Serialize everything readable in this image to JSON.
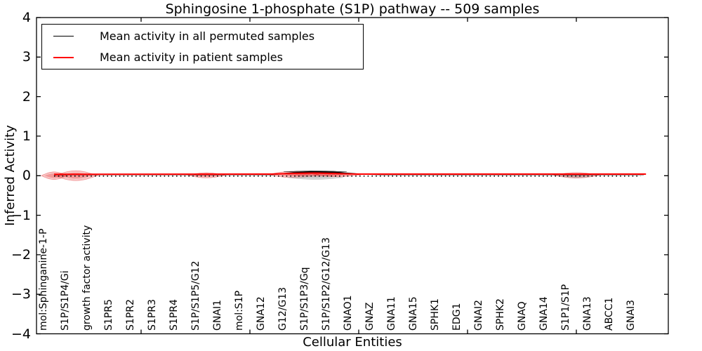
{
  "title": "Sphingosine 1-phosphate (S1P) pathway -- 509 samples",
  "legend": {
    "entries": [
      {
        "label": "Mean activity in all permuted samples",
        "color": "#000000"
      },
      {
        "label": "Mean activity in patient samples",
        "color": "#ff0000"
      }
    ]
  },
  "axes": {
    "xlabel": "Cellular Entities",
    "ylabel": "Inferred Activity"
  },
  "chart_data": {
    "type": "violin",
    "title": "Sphingosine 1-phosphate (S1P) pathway -- 509 samples",
    "xlabel": "Cellular Entities",
    "ylabel": "Inferred Activity",
    "ylim": [
      -4,
      4
    ],
    "ytick_values": [
      -4,
      -3,
      -2,
      -1,
      0,
      1,
      2,
      3,
      4
    ],
    "xtick_index_values": [
      5,
      10,
      15,
      20,
      25
    ],
    "grid": false,
    "legend_position": "upper left",
    "categories": [
      "mol:Sphinganine-1-P",
      "S1P/S1P4/Gi",
      "growth factor activity",
      "S1PR5",
      "S1PR2",
      "S1PR3",
      "S1PR4",
      "S1P/S1P5/G12",
      "GNAI1",
      "mol:S1P",
      "GNA12",
      "G12/G13",
      "S1P/S1P3/Gq",
      "S1P/S1P2/G12/G13",
      "GNAO1",
      "GNAZ",
      "GNA11",
      "GNA15",
      "SPHK1",
      "EDG1",
      "GNAI2",
      "SPHK2",
      "GNAQ",
      "GNA14",
      "S1P1/S1P",
      "GNA13",
      "ABCC1",
      "GNAI3"
    ],
    "series": [
      {
        "name": "Mean activity in all permuted samples",
        "color": "#000000",
        "style": "solid",
        "width": 1.6,
        "points": [
          [
            1,
            0.03
          ],
          [
            11,
            0.03
          ],
          [
            12,
            0.07
          ],
          [
            12.8,
            0.1
          ],
          [
            13.8,
            0.09
          ],
          [
            15,
            0.04
          ],
          [
            16,
            0.03
          ],
          [
            28.1,
            0.03
          ]
        ]
      },
      {
        "name": "Mean activity in patient samples",
        "color": "#ff0000",
        "style": "solid",
        "width": 2,
        "points": [
          [
            1,
            0.035
          ],
          [
            11,
            0.04
          ],
          [
            12,
            0.058
          ],
          [
            13,
            0.066
          ],
          [
            14,
            0.052
          ],
          [
            15,
            0.04
          ],
          [
            28.2,
            0.04
          ]
        ]
      },
      {
        "name": "zero reference",
        "color": "#000000",
        "style": "dotted",
        "width": 1.6,
        "points": [
          [
            1,
            -0.01
          ],
          [
            27.95,
            -0.01
          ]
        ]
      }
    ],
    "violins": [
      {
        "index": 1,
        "group": "patient",
        "half_width": 0.6,
        "half_height": 0.095,
        "dy": 0.0
      },
      {
        "index": 2,
        "group": "patient",
        "half_width": 1.0,
        "half_height": 0.125,
        "dy": 0.0
      },
      {
        "index": 8,
        "group": "patient",
        "half_width": 0.85,
        "half_height": 0.065,
        "dy": 0.01
      },
      {
        "index": 12,
        "group": "patient",
        "half_width": 1.2,
        "half_height": 0.08,
        "dy": 0.03
      },
      {
        "index": 13,
        "group": "patient",
        "half_width": 1.5,
        "half_height": 0.06,
        "dy": 0.045
      },
      {
        "index": 13,
        "group": "permuted-dark",
        "half_width": 1.45,
        "half_height": 0.02,
        "dy": 0.1
      },
      {
        "index": 13,
        "group": "permuted",
        "half_width": 1.3,
        "half_height": 0.05,
        "dy": -0.045
      },
      {
        "index": 14,
        "group": "patient",
        "half_width": 1.1,
        "half_height": 0.045,
        "dy": 0.02
      },
      {
        "index": 25,
        "group": "patient",
        "half_width": 1.05,
        "half_height": 0.07,
        "dy": 0.01
      },
      {
        "index": 25,
        "group": "permuted",
        "half_width": 0.7,
        "half_height": 0.03,
        "dy": -0.02
      }
    ],
    "colors": {
      "patient": "#e31a1c",
      "permuted": "#999999",
      "permuted-dark": "#222222"
    }
  }
}
